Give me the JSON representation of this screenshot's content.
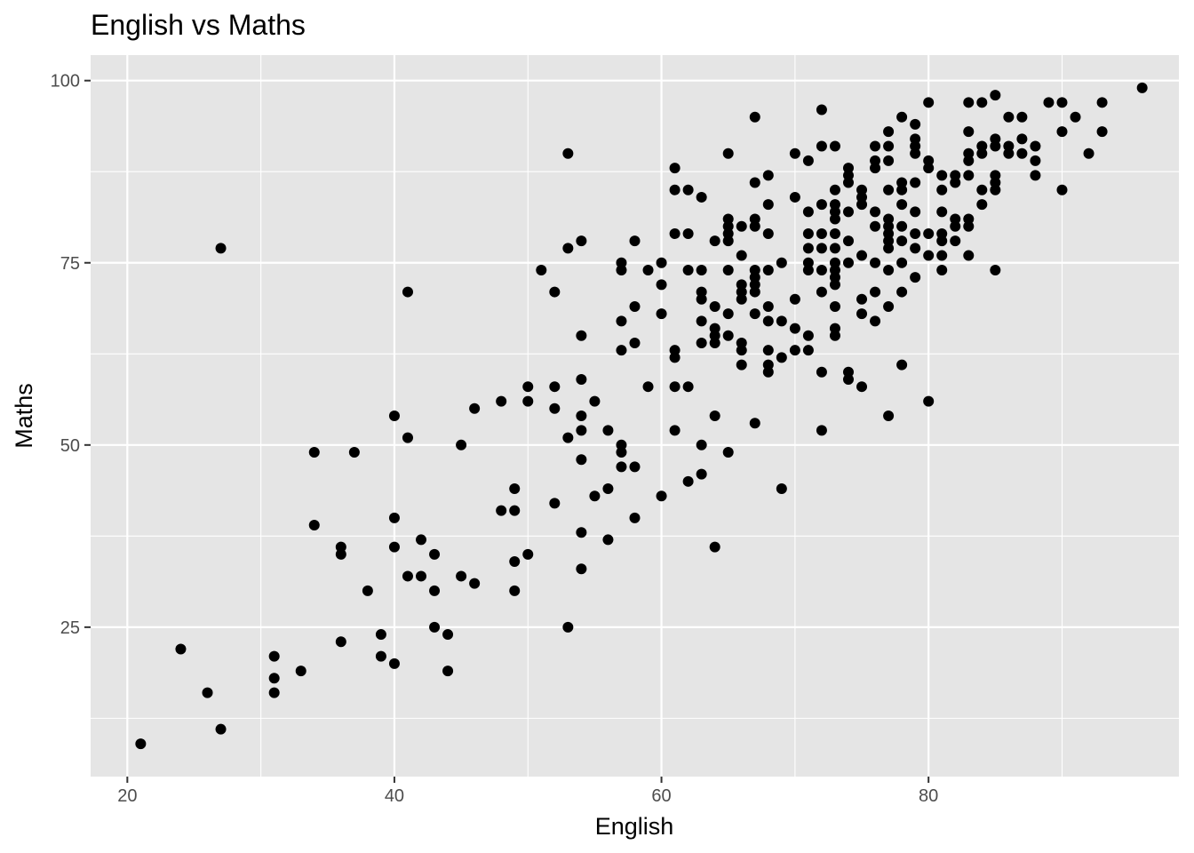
{
  "chart_data": {
    "type": "scatter",
    "title": "English vs Maths",
    "xlabel": "English",
    "ylabel": "Maths",
    "xlim": [
      17.25,
      98.75
    ],
    "ylim": [
      4.5,
      103.5
    ],
    "x_ticks": [
      20,
      40,
      60,
      80
    ],
    "y_ticks": [
      25,
      50,
      75,
      100
    ],
    "x_minor": [
      30,
      50,
      70,
      90
    ],
    "y_minor": [
      12.5,
      37.5,
      62.5,
      87.5
    ],
    "background": "#e5e5e5",
    "grid": true,
    "legend": "none",
    "points": [
      [
        21,
        9
      ],
      [
        24,
        22
      ],
      [
        26,
        16
      ],
      [
        27,
        11
      ],
      [
        27,
        77
      ],
      [
        31,
        21
      ],
      [
        31,
        18
      ],
      [
        31,
        16
      ],
      [
        33,
        19
      ],
      [
        34,
        49
      ],
      [
        34,
        39
      ],
      [
        36,
        36
      ],
      [
        36,
        35
      ],
      [
        36,
        23
      ],
      [
        37,
        49
      ],
      [
        38,
        30
      ],
      [
        39,
        24
      ],
      [
        39,
        21
      ],
      [
        40,
        54
      ],
      [
        40,
        40
      ],
      [
        40,
        36
      ],
      [
        40,
        20
      ],
      [
        41,
        71
      ],
      [
        41,
        51
      ],
      [
        41,
        32
      ],
      [
        42,
        37
      ],
      [
        42,
        32
      ],
      [
        43,
        35
      ],
      [
        43,
        30
      ],
      [
        43,
        25
      ],
      [
        44,
        24
      ],
      [
        44,
        19
      ],
      [
        45,
        50
      ],
      [
        45,
        32
      ],
      [
        46,
        55
      ],
      [
        46,
        31
      ],
      [
        48,
        56
      ],
      [
        48,
        41
      ],
      [
        49,
        44
      ],
      [
        49,
        41
      ],
      [
        49,
        34
      ],
      [
        49,
        30
      ],
      [
        50,
        58
      ],
      [
        50,
        56
      ],
      [
        50,
        35
      ],
      [
        51,
        74
      ],
      [
        52,
        71
      ],
      [
        52,
        58
      ],
      [
        52,
        55
      ],
      [
        52,
        42
      ],
      [
        53,
        90
      ],
      [
        53,
        77
      ],
      [
        53,
        51
      ],
      [
        53,
        25
      ],
      [
        54,
        78
      ],
      [
        54,
        65
      ],
      [
        54,
        59
      ],
      [
        54,
        54
      ],
      [
        54,
        52
      ],
      [
        54,
        48
      ],
      [
        54,
        38
      ],
      [
        54,
        33
      ],
      [
        55,
        56
      ],
      [
        55,
        43
      ],
      [
        56,
        52
      ],
      [
        56,
        44
      ],
      [
        56,
        37
      ],
      [
        57,
        75
      ],
      [
        57,
        74
      ],
      [
        57,
        67
      ],
      [
        57,
        63
      ],
      [
        57,
        50
      ],
      [
        57,
        49
      ],
      [
        57,
        47
      ],
      [
        58,
        78
      ],
      [
        58,
        69
      ],
      [
        58,
        64
      ],
      [
        58,
        47
      ],
      [
        58,
        40
      ],
      [
        59,
        74
      ],
      [
        59,
        58
      ],
      [
        60,
        75
      ],
      [
        60,
        72
      ],
      [
        60,
        68
      ],
      [
        60,
        43
      ],
      [
        61,
        88
      ],
      [
        61,
        85
      ],
      [
        61,
        79
      ],
      [
        61,
        63
      ],
      [
        61,
        62
      ],
      [
        61,
        58
      ],
      [
        61,
        52
      ],
      [
        62,
        85
      ],
      [
        62,
        79
      ],
      [
        62,
        74
      ],
      [
        62,
        58
      ],
      [
        62,
        45
      ],
      [
        63,
        84
      ],
      [
        63,
        74
      ],
      [
        63,
        71
      ],
      [
        63,
        70
      ],
      [
        63,
        67
      ],
      [
        63,
        64
      ],
      [
        63,
        50
      ],
      [
        63,
        46
      ],
      [
        64,
        78
      ],
      [
        64,
        69
      ],
      [
        64,
        66
      ],
      [
        64,
        65
      ],
      [
        64,
        64
      ],
      [
        64,
        54
      ],
      [
        64,
        36
      ],
      [
        65,
        90
      ],
      [
        65,
        81
      ],
      [
        65,
        80
      ],
      [
        65,
        79
      ],
      [
        65,
        78
      ],
      [
        65,
        74
      ],
      [
        65,
        68
      ],
      [
        65,
        65
      ],
      [
        65,
        49
      ],
      [
        66,
        80
      ],
      [
        66,
        76
      ],
      [
        66,
        72
      ],
      [
        66,
        71
      ],
      [
        66,
        70
      ],
      [
        66,
        64
      ],
      [
        66,
        63
      ],
      [
        66,
        61
      ],
      [
        67,
        95
      ],
      [
        67,
        86
      ],
      [
        67,
        81
      ],
      [
        67,
        80
      ],
      [
        67,
        74
      ],
      [
        67,
        73
      ],
      [
        67,
        72
      ],
      [
        67,
        71
      ],
      [
        67,
        68
      ],
      [
        67,
        53
      ],
      [
        68,
        87
      ],
      [
        68,
        83
      ],
      [
        68,
        79
      ],
      [
        68,
        74
      ],
      [
        68,
        69
      ],
      [
        68,
        67
      ],
      [
        68,
        63
      ],
      [
        68,
        61
      ],
      [
        68,
        60
      ],
      [
        69,
        75
      ],
      [
        69,
        67
      ],
      [
        69,
        62
      ],
      [
        69,
        44
      ],
      [
        70,
        90
      ],
      [
        70,
        84
      ],
      [
        70,
        70
      ],
      [
        70,
        66
      ],
      [
        70,
        63
      ],
      [
        71,
        89
      ],
      [
        71,
        82
      ],
      [
        71,
        79
      ],
      [
        71,
        77
      ],
      [
        71,
        75
      ],
      [
        71,
        74
      ],
      [
        71,
        65
      ],
      [
        71,
        63
      ],
      [
        72,
        96
      ],
      [
        72,
        91
      ],
      [
        72,
        83
      ],
      [
        72,
        79
      ],
      [
        72,
        77
      ],
      [
        72,
        74
      ],
      [
        72,
        71
      ],
      [
        72,
        60
      ],
      [
        72,
        52
      ],
      [
        73,
        91
      ],
      [
        73,
        85
      ],
      [
        73,
        83
      ],
      [
        73,
        82
      ],
      [
        73,
        81
      ],
      [
        73,
        79
      ],
      [
        73,
        77
      ],
      [
        73,
        75
      ],
      [
        73,
        74
      ],
      [
        73,
        73
      ],
      [
        73,
        72
      ],
      [
        73,
        69
      ],
      [
        73,
        66
      ],
      [
        73,
        65
      ],
      [
        74,
        88
      ],
      [
        74,
        87
      ],
      [
        74,
        86
      ],
      [
        74,
        82
      ],
      [
        74,
        78
      ],
      [
        74,
        75
      ],
      [
        74,
        60
      ],
      [
        74,
        59
      ],
      [
        75,
        85
      ],
      [
        75,
        84
      ],
      [
        75,
        83
      ],
      [
        75,
        76
      ],
      [
        75,
        70
      ],
      [
        75,
        68
      ],
      [
        75,
        58
      ],
      [
        76,
        91
      ],
      [
        76,
        89
      ],
      [
        76,
        88
      ],
      [
        76,
        82
      ],
      [
        76,
        80
      ],
      [
        76,
        75
      ],
      [
        76,
        71
      ],
      [
        76,
        67
      ],
      [
        77,
        93
      ],
      [
        77,
        91
      ],
      [
        77,
        89
      ],
      [
        77,
        85
      ],
      [
        77,
        81
      ],
      [
        77,
        80
      ],
      [
        77,
        79
      ],
      [
        77,
        78
      ],
      [
        77,
        77
      ],
      [
        77,
        74
      ],
      [
        77,
        69
      ],
      [
        77,
        54
      ],
      [
        78,
        95
      ],
      [
        78,
        86
      ],
      [
        78,
        85
      ],
      [
        78,
        83
      ],
      [
        78,
        80
      ],
      [
        78,
        78
      ],
      [
        78,
        75
      ],
      [
        78,
        71
      ],
      [
        78,
        61
      ],
      [
        79,
        94
      ],
      [
        79,
        92
      ],
      [
        79,
        91
      ],
      [
        79,
        90
      ],
      [
        79,
        86
      ],
      [
        79,
        82
      ],
      [
        79,
        79
      ],
      [
        79,
        77
      ],
      [
        79,
        73
      ],
      [
        80,
        97
      ],
      [
        80,
        89
      ],
      [
        80,
        88
      ],
      [
        80,
        79
      ],
      [
        80,
        76
      ],
      [
        80,
        56
      ],
      [
        81,
        87
      ],
      [
        81,
        85
      ],
      [
        81,
        82
      ],
      [
        81,
        79
      ],
      [
        81,
        78
      ],
      [
        81,
        76
      ],
      [
        81,
        74
      ],
      [
        82,
        87
      ],
      [
        82,
        86
      ],
      [
        82,
        81
      ],
      [
        82,
        80
      ],
      [
        82,
        78
      ],
      [
        83,
        97
      ],
      [
        83,
        93
      ],
      [
        83,
        90
      ],
      [
        83,
        89
      ],
      [
        83,
        87
      ],
      [
        83,
        81
      ],
      [
        83,
        80
      ],
      [
        83,
        76
      ],
      [
        84,
        97
      ],
      [
        84,
        91
      ],
      [
        84,
        90
      ],
      [
        84,
        85
      ],
      [
        84,
        83
      ],
      [
        85,
        98
      ],
      [
        85,
        92
      ],
      [
        85,
        91
      ],
      [
        85,
        87
      ],
      [
        85,
        86
      ],
      [
        85,
        85
      ],
      [
        85,
        74
      ],
      [
        86,
        95
      ],
      [
        86,
        91
      ],
      [
        86,
        90
      ],
      [
        87,
        95
      ],
      [
        87,
        92
      ],
      [
        87,
        90
      ],
      [
        88,
        91
      ],
      [
        88,
        89
      ],
      [
        88,
        87
      ],
      [
        89,
        97
      ],
      [
        90,
        97
      ],
      [
        90,
        93
      ],
      [
        90,
        85
      ],
      [
        91,
        95
      ],
      [
        92,
        90
      ],
      [
        93,
        97
      ],
      [
        93,
        93
      ],
      [
        96,
        99
      ]
    ]
  }
}
